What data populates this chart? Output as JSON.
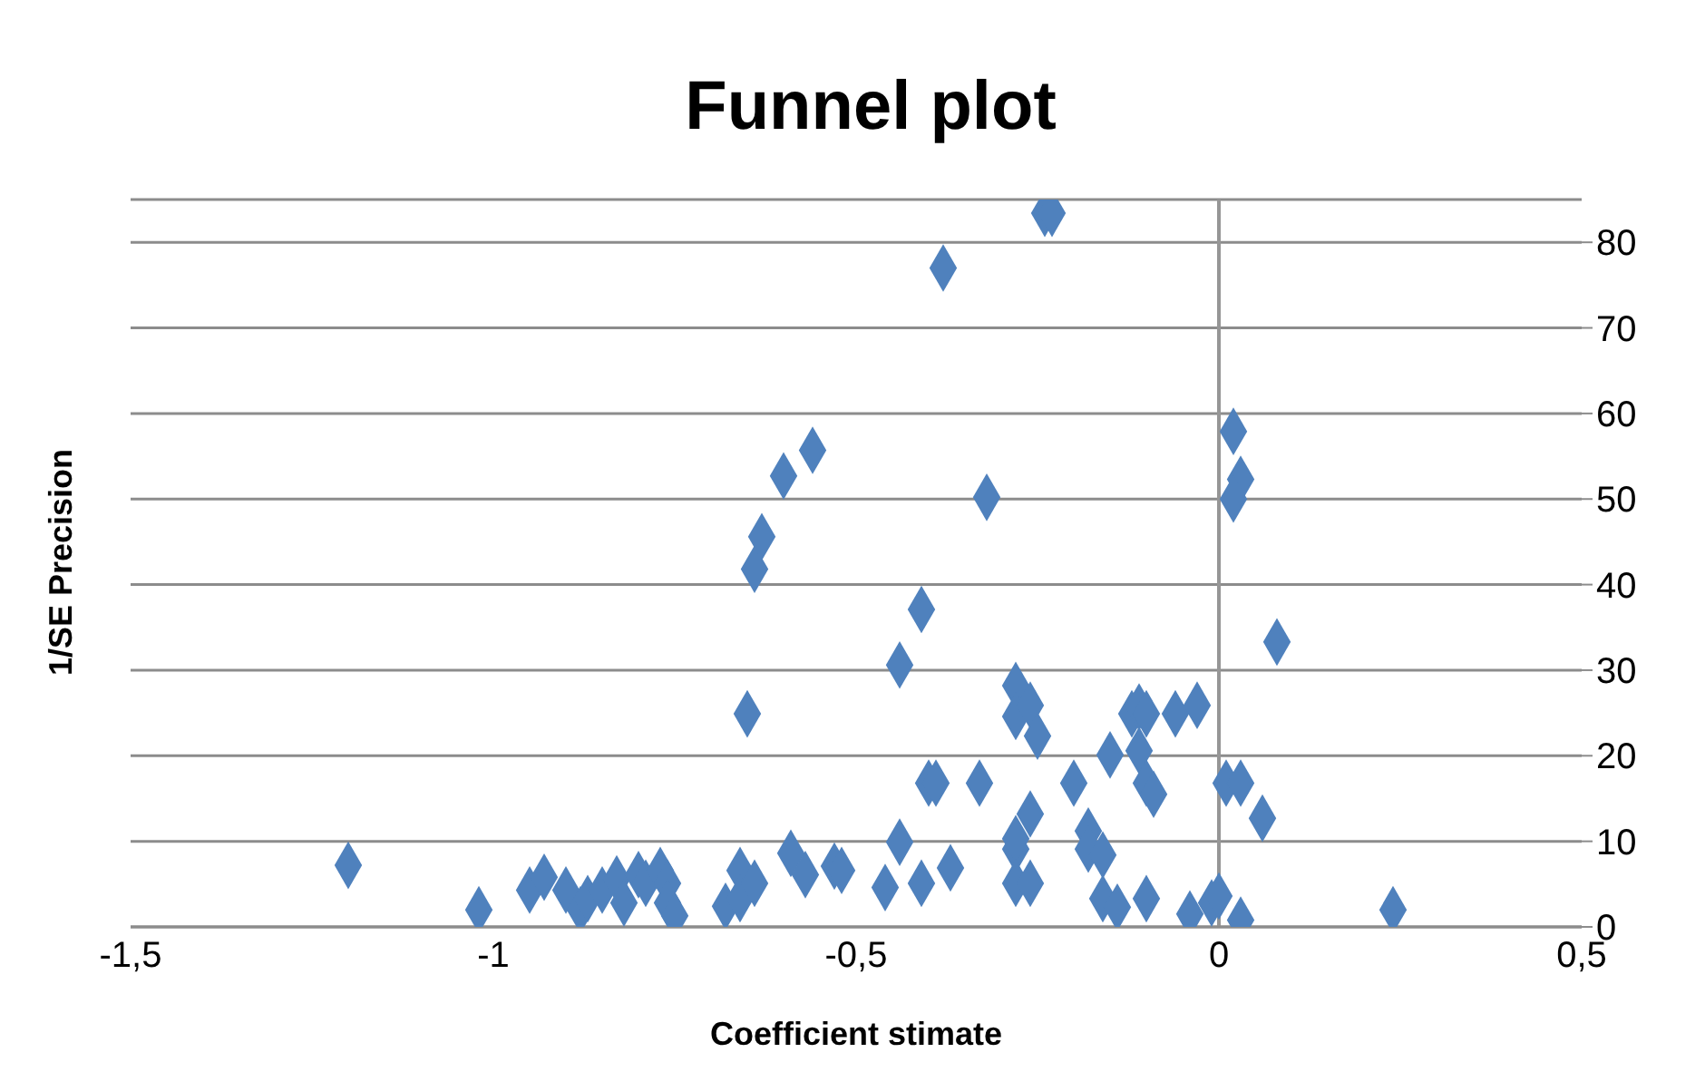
{
  "chart_data": {
    "type": "scatter",
    "title": "Funnel plot",
    "xlabel": "Coefficient stimate",
    "ylabel": "1/SE Precision",
    "marker": "diamond",
    "grid": "y",
    "legend": false,
    "xlim": [
      -1.5,
      0.5
    ],
    "xticks": [
      {
        "value": -1.5,
        "label": "-1,5"
      },
      -1,
      {
        "value": -0.5,
        "label": "-0,5"
      },
      0,
      {
        "value": 0.5,
        "label": "0,5"
      }
    ],
    "ylim": [
      0,
      85
    ],
    "yticks": [
      0,
      10,
      20,
      30,
      40,
      50,
      60,
      70,
      80
    ],
    "ref_lines": [
      {
        "axis": "x",
        "value": 0,
        "color": "#969696"
      }
    ],
    "series": [
      {
        "color": "#4f81bd",
        "x": [
          -1.2,
          -1.02,
          -0.95,
          -0.93,
          -0.9,
          -0.88,
          -0.87,
          -0.85,
          -0.83,
          -0.82,
          -0.8,
          -0.79,
          -0.77,
          -0.76,
          -0.76,
          -0.75,
          -0.68,
          -0.66,
          -0.66,
          -0.64,
          -0.65,
          -0.64,
          -0.63,
          -0.6,
          -0.56,
          -0.59,
          -0.57,
          -0.53,
          -0.52,
          -0.46,
          -0.44,
          -0.44,
          -0.41,
          -0.41,
          -0.4,
          -0.39,
          -0.38,
          -0.37,
          -0.33,
          -0.32,
          -0.28,
          -0.28,
          -0.28,
          -0.28,
          -0.28,
          -0.26,
          -0.26,
          -0.26,
          -0.25,
          -0.24,
          -0.23,
          -0.2,
          -0.18,
          -0.18,
          -0.16,
          -0.15,
          -0.16,
          -0.14,
          -0.12,
          -0.11,
          -0.11,
          -0.1,
          -0.1,
          -0.1,
          -0.09,
          -0.06,
          -0.04,
          -0.03,
          -0.01,
          0,
          0.01,
          0.02,
          0.03,
          0.02,
          0.03,
          0.03,
          0.06,
          0.08,
          0.24
        ],
        "values": [
          7.2,
          2,
          4.3,
          5.8,
          4.3,
          2,
          3.3,
          4.3,
          5.6,
          2.8,
          6.1,
          5.1,
          6.6,
          5.1,
          2.8,
          1.3,
          2.4,
          6.6,
          3.3,
          5.1,
          24.9,
          41.8,
          45.6,
          52.7,
          55.7,
          8.6,
          6.1,
          7.1,
          6.6,
          4.6,
          9.9,
          30.6,
          37.1,
          5.1,
          16.8,
          16.8,
          77,
          6.9,
          16.8,
          50.2,
          28.2,
          9.1,
          24.6,
          10.3,
          5.1,
          13.2,
          25.9,
          5.1,
          22.3,
          83.4,
          83.4,
          16.8,
          11.2,
          9.1,
          8.4,
          20.1,
          3.3,
          2.3,
          24.9,
          25.7,
          20.6,
          16.8,
          3.3,
          24.9,
          15.5,
          24.9,
          1.5,
          25.9,
          2.8,
          3.6,
          16.8,
          57.9,
          52.3,
          50,
          16.8,
          0.8,
          12.7,
          33.3,
          2
        ]
      }
    ]
  }
}
